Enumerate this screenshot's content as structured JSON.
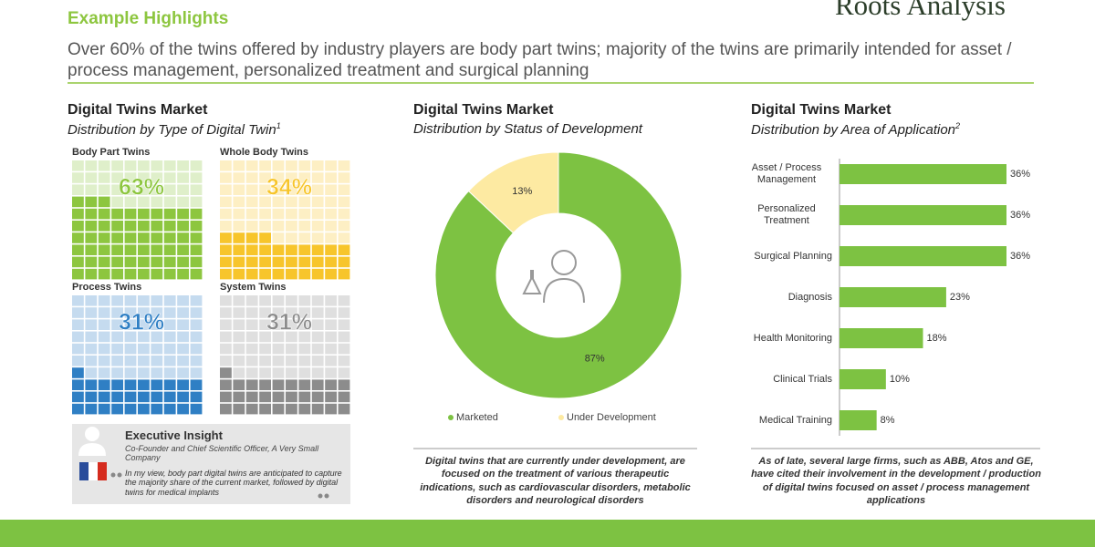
{
  "header": {
    "title": "Example Highlights",
    "subtitle": "Over 60% of the twins offered by industry players are body part twins; majority of the twins are primarily intended for asset / process management, personalized treatment and surgical planning"
  },
  "brand": "Roots Analysis",
  "chart_data": [
    {
      "type": "waffle",
      "title": "Digital Twins Market",
      "subtitle": "Distribution by Type of Digital Twin",
      "subtitle_note": "1",
      "categories": [
        "Body Part Twins",
        "Whole Body Twins",
        "Process Twins",
        "System Twins"
      ],
      "values": [
        63,
        34,
        31,
        31
      ],
      "value_labels": [
        "63%",
        "34%",
        "31%",
        "31%"
      ],
      "colors": [
        "#8dc63f",
        "#f7c52b",
        "#2f7fc4",
        "#8c8c8c"
      ]
    },
    {
      "type": "donut",
      "title": "Digital Twins Market",
      "subtitle": "Distribution by Status of Development",
      "categories": [
        "Marketed",
        "Under Development"
      ],
      "values": [
        87,
        13
      ],
      "value_labels": [
        "87%",
        "13%"
      ],
      "colors": [
        "#7dc242",
        "#fdeaa2"
      ],
      "legend": "bottom",
      "note": "Digital twins that are currently under development, are focused on the treatment of various therapeutic indications, such as cardiovascular disorders, metabolic disorders and neurological disorders"
    },
    {
      "type": "hbar",
      "title": "Digital Twins Market",
      "subtitle": "Distribution by Area of Application",
      "subtitle_note": "2",
      "categories": [
        "Asset / Process Management",
        "Personalized Treatment",
        "Surgical Planning",
        "Diagnosis",
        "Health Monitoring",
        "Clinical Trials",
        "Medical Training"
      ],
      "values": [
        36,
        36,
        36,
        23,
        18,
        10,
        8
      ],
      "value_labels": [
        "36%",
        "36%",
        "36%",
        "23%",
        "18%",
        "10%",
        "8%"
      ],
      "color": "#7dc242",
      "note": "As of late, several large firms, such as ABB, Atos and GE, have cited their involvement in the development / production of digital twins focused on asset / process management applications"
    }
  ],
  "executive_insight": {
    "title": "Executive Insight",
    "role": "Co-Founder and Chief Scientific Officer, A Very Small Company",
    "quote": "In my view, body part digital twins are anticipated to capture the majority share of the current market, followed by digital twins for medical implants"
  }
}
